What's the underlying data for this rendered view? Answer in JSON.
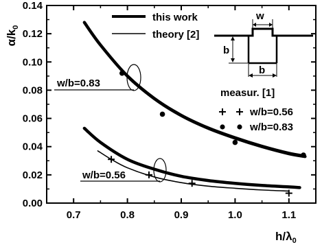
{
  "chart_data": {
    "type": "line",
    "xlabel": "h/λ",
    "xlabel_sub": "0",
    "ylabel": "α/k",
    "ylabel_sub": "0",
    "xlim": [
      0.65,
      1.15
    ],
    "ylim": [
      0.0,
      0.14
    ],
    "x_ticks": [
      0.7,
      0.8,
      0.9,
      1.0,
      1.1
    ],
    "x_tick_labels": [
      "0.7",
      "0.8",
      "0.9",
      "1.0",
      "1.1"
    ],
    "y_ticks": [
      0.0,
      0.02,
      0.04,
      0.06,
      0.08,
      0.1,
      0.12,
      0.14
    ],
    "y_tick_labels": [
      "0.00",
      "0.02",
      "0.04",
      "0.06",
      "0.08",
      "0.10",
      "0.12",
      "0.14"
    ],
    "legend": {
      "placement": "top-center",
      "entries": [
        {
          "label": "this work",
          "style": "thick-line"
        },
        {
          "label": "theory [2]",
          "style": "thin-line"
        }
      ]
    },
    "measurement_legend": {
      "title": "measur. [1]",
      "entries": [
        {
          "symbol": "+",
          "label": "w/b=0.56"
        },
        {
          "symbol": "dot",
          "label": "w/b=0.83"
        }
      ]
    },
    "annotations": [
      {
        "text": "w/b=0.83"
      },
      {
        "text": "w/b=0.56"
      }
    ],
    "inset": {
      "labels": [
        "w",
        "b",
        "b"
      ]
    },
    "series": [
      {
        "group": "w/b=0.83",
        "style": "thick",
        "x": [
          0.72,
          0.75,
          0.8,
          0.85,
          0.9,
          0.95,
          1.0,
          1.05,
          1.1,
          1.13
        ],
        "y": [
          0.128,
          0.112,
          0.09,
          0.074,
          0.062,
          0.053,
          0.046,
          0.04,
          0.035,
          0.033
        ]
      },
      {
        "group": "w/b=0.83",
        "style": "thin",
        "x": [
          0.72,
          0.75,
          0.8,
          0.85,
          0.9,
          0.95,
          1.0,
          1.05,
          1.1,
          1.13
        ],
        "y": [
          0.128,
          0.112,
          0.091,
          0.075,
          0.063,
          0.054,
          0.047,
          0.041,
          0.036,
          0.034
        ]
      },
      {
        "group": "w/b=0.56",
        "style": "thick",
        "x": [
          0.72,
          0.75,
          0.8,
          0.85,
          0.9,
          0.95,
          1.0,
          1.05,
          1.1,
          1.12
        ],
        "y": [
          0.053,
          0.043,
          0.031,
          0.024,
          0.019,
          0.016,
          0.014,
          0.0125,
          0.0115,
          0.011
        ]
      },
      {
        "group": "w/b=0.56",
        "style": "thin",
        "x": [
          0.745,
          0.77,
          0.8,
          0.85,
          0.9,
          0.95,
          1.0,
          1.05,
          1.1
        ],
        "y": [
          0.037,
          0.031,
          0.025,
          0.0185,
          0.0145,
          0.012,
          0.0105,
          0.0093,
          0.0085
        ]
      }
    ],
    "measurements": [
      {
        "name": "w/b=0.83",
        "marker": "dot",
        "x": [
          0.79,
          0.865,
          1.0,
          1.127
        ],
        "y": [
          0.092,
          0.063,
          0.043,
          0.034
        ]
      },
      {
        "name": "w/b=0.56",
        "marker": "plus",
        "x": [
          0.77,
          0.84,
          0.92,
          1.1
        ],
        "y": [
          0.031,
          0.02,
          0.014,
          0.007
        ]
      }
    ]
  }
}
